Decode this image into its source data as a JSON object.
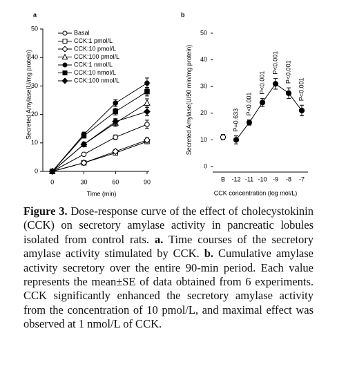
{
  "chart_data": [
    {
      "type": "line",
      "panel_label": "a",
      "x_label": "Time (min)",
      "y_label": "Secreted Amylase(U/mg protein)",
      "x": [
        0,
        30,
        60,
        90
      ],
      "xlim": [
        -9,
        92
      ],
      "xticks": [
        0,
        30,
        60,
        90
      ],
      "ylim": [
        0,
        50
      ],
      "yticks": [
        0,
        10,
        20,
        30,
        40,
        50
      ],
      "series": [
        {
          "name": "Basal",
          "marker": "circle",
          "filled": false,
          "values": [
            0,
            6,
            12,
            16.5
          ],
          "errors": [
            0,
            0.5,
            0.8,
            1.5
          ]
        },
        {
          "name": "CCK:1 pmol/L",
          "marker": "square",
          "filled": false,
          "values": [
            0,
            3,
            6.5,
            10.5
          ],
          "errors": [
            0,
            0.5,
            0.7,
            0.8
          ]
        },
        {
          "name": "CCK:10 pmol/L",
          "marker": "diamond",
          "filled": false,
          "values": [
            0,
            3,
            7,
            11
          ],
          "errors": [
            0,
            0.5,
            0.7,
            0.8
          ]
        },
        {
          "name": "CCK:100 pmol/L",
          "marker": "triangle",
          "filled": false,
          "values": [
            0,
            9.5,
            17,
            24
          ],
          "errors": [
            0,
            0.8,
            1.2,
            1.5
          ]
        },
        {
          "name": "CCK:1 nmol/L",
          "marker": "circle",
          "filled": true,
          "values": [
            0,
            13,
            24,
            31
          ],
          "errors": [
            0,
            0.8,
            1.2,
            1.8
          ]
        },
        {
          "name": "CCK:10 nmol/L",
          "marker": "square",
          "filled": true,
          "values": [
            0,
            12.5,
            21,
            28
          ],
          "errors": [
            0,
            0.8,
            1.2,
            1.5
          ]
        },
        {
          "name": "CCK:100 nmol/L",
          "marker": "diamond",
          "filled": true,
          "values": [
            0,
            9.5,
            17.5,
            21
          ],
          "errors": [
            0,
            0.8,
            1,
            1.5
          ]
        }
      ]
    },
    {
      "type": "dot-line",
      "panel_label": "b",
      "x_label": "CCK concentration (log mol/L)",
      "y_label": "Secreted Amylase(U/90 min/mg protein)",
      "categories": [
        "B",
        "-12",
        "-11",
        "-10",
        "-9",
        "-8",
        "-7"
      ],
      "ylim": [
        0,
        50
      ],
      "yticks": [
        0,
        10,
        20,
        30,
        40,
        50
      ],
      "values": [
        11,
        10,
        16.5,
        24,
        31,
        27.5,
        21
      ],
      "errors": [
        1,
        1.5,
        1,
        1.5,
        2,
        2,
        2
      ],
      "annotations": [
        "P=0.633",
        "P<0.001",
        "P<0.001",
        "P<0.001",
        "P<0.001",
        "P<0.001"
      ]
    }
  ],
  "caption": [
    "Figure 3.",
    "Dose-response curve of the effect of cholecystokinin (CCK) on secretory amylase activity in pancreatic lobules isolated from control rats.",
    "a.",
    "Time courses of the secretory amylase activity stimulated by CCK.",
    "b.",
    "Cumulative amylase activity secretory over the entire 90-min period. Each value represents the mean±SE of data obtained from 6 experiments. CCK significantly enhanced the secretory amylase activity from the concentration of 10 pmol/L, and maximal effect was observed at 1 nmol/L of CCK."
  ]
}
